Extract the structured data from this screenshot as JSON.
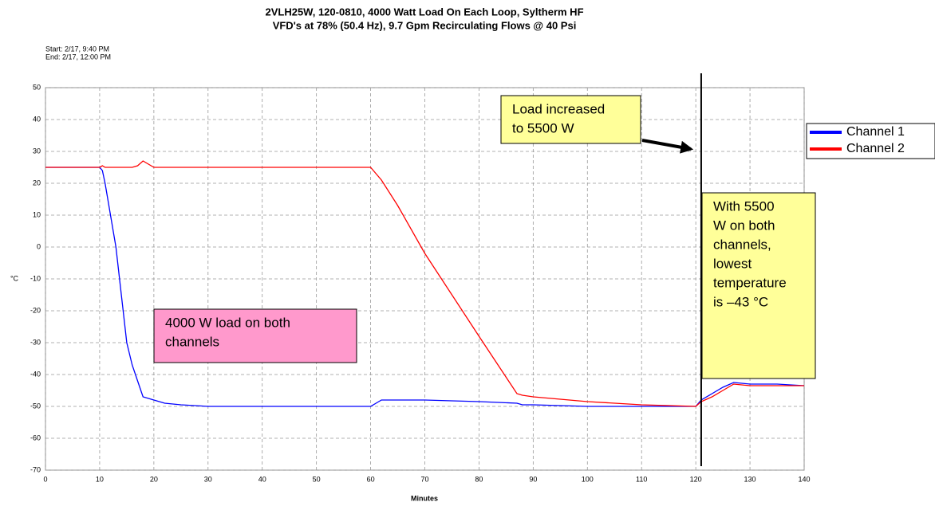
{
  "chart_data": {
    "type": "line",
    "title": [
      "2VLH25W, 120-0810, 4000 Watt Load On Each Loop, Syltherm HF",
      "VFD's at 78% (50.4 Hz), 9.7 Gpm Recirculating Flows @ 40 Psi"
    ],
    "subtitle": [
      "Start: 2/17, 9:40 PM",
      "End:  2/17, 12:00 PM"
    ],
    "x_label": "Minutes",
    "y_label": "°C",
    "x": [
      0,
      5,
      10,
      10.5,
      11,
      12,
      13,
      14,
      15,
      16,
      17,
      18,
      20,
      22,
      25,
      30,
      40,
      50,
      60,
      61,
      62,
      65,
      70,
      80,
      87,
      88,
      90,
      100,
      110,
      120,
      121,
      123,
      125,
      127,
      130,
      135,
      140
    ],
    "series": [
      {
        "name": "Channel 1",
        "color": "#0000ff",
        "values": [
          25,
          25,
          25,
          24,
          20,
          10,
          0,
          -15,
          -30,
          -37,
          -42,
          -47,
          -48,
          -49,
          -49.5,
          -50,
          -50,
          -50,
          -50,
          -49,
          -48,
          -48,
          -48,
          -48.5,
          -49,
          -49.5,
          -49.5,
          -50,
          -50,
          -50,
          -48,
          -46,
          -44,
          -42.5,
          -43,
          -43,
          -43.5
        ]
      },
      {
        "name": "Channel 2",
        "color": "#ff0000",
        "values": [
          25,
          25,
          25,
          25.5,
          25,
          25,
          25,
          25,
          25,
          25,
          25.5,
          27,
          25,
          25,
          25,
          25,
          25,
          25,
          25,
          23,
          21,
          13,
          -2,
          -28,
          -46,
          -46.5,
          -47,
          -48.5,
          -49.5,
          -50,
          -48.5,
          -47,
          -45,
          -43,
          -43.5,
          -43.5,
          -43.5
        ]
      }
    ],
    "xlim": [
      0,
      140
    ],
    "xticks": [
      0,
      10,
      20,
      30,
      40,
      50,
      60,
      70,
      80,
      90,
      100,
      110,
      120,
      130,
      140
    ],
    "ylim": [
      -70,
      50
    ],
    "yticks": [
      -70,
      -60,
      -50,
      -40,
      -30,
      -20,
      -10,
      0,
      10,
      20,
      30,
      40,
      50
    ],
    "grid": true,
    "legend": "right",
    "vertical_line_x": 121,
    "annotations": [
      {
        "lines": [
          "Load increased",
          "to 5500 W"
        ],
        "color": "#ffff99"
      },
      {
        "lines": [
          "4000 W load on both",
          "channels"
        ],
        "color": "#ff99cc"
      },
      {
        "lines": [
          "With 5500",
          "W on both",
          "channels,",
          "lowest",
          "temperature",
          "is –43 °C"
        ],
        "color": "#ffff99"
      }
    ]
  }
}
